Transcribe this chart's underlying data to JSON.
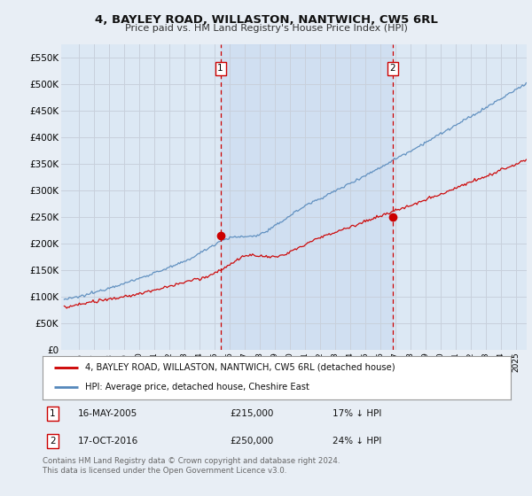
{
  "title": "4, BAYLEY ROAD, WILLASTON, NANTWICH, CW5 6RL",
  "subtitle": "Price paid vs. HM Land Registry's House Price Index (HPI)",
  "background_color": "#e8eef5",
  "plot_bg_color": "#dce8f4",
  "plot_bg_shaded": "#c8daf0",
  "grid_color": "#c8d0dc",
  "ylim": [
    0,
    575000
  ],
  "yticks": [
    0,
    50000,
    100000,
    150000,
    200000,
    250000,
    300000,
    350000,
    400000,
    450000,
    500000,
    550000
  ],
  "ytick_labels": [
    "£0",
    "£50K",
    "£100K",
    "£150K",
    "£200K",
    "£250K",
    "£300K",
    "£350K",
    "£400K",
    "£450K",
    "£500K",
    "£550K"
  ],
  "legend_line1": "4, BAYLEY ROAD, WILLASTON, NANTWICH, CW5 6RL (detached house)",
  "legend_line2": "HPI: Average price, detached house, Cheshire East",
  "annotation1_num": "1",
  "annotation1_date": "16-MAY-2005",
  "annotation1_price": "£215,000",
  "annotation1_hpi": "17% ↓ HPI",
  "annotation2_num": "2",
  "annotation2_date": "17-OCT-2016",
  "annotation2_price": "£250,000",
  "annotation2_hpi": "24% ↓ HPI",
  "footer": "Contains HM Land Registry data © Crown copyright and database right 2024.\nThis data is licensed under the Open Government Licence v3.0.",
  "sale1_year": 2005.37,
  "sale1_price": 215000,
  "sale2_year": 2016.79,
  "sale2_price": 250000,
  "red_line_color": "#cc0000",
  "blue_line_color": "#5588bb",
  "vline_color": "#cc0000",
  "marker_box_color": "#cc0000"
}
